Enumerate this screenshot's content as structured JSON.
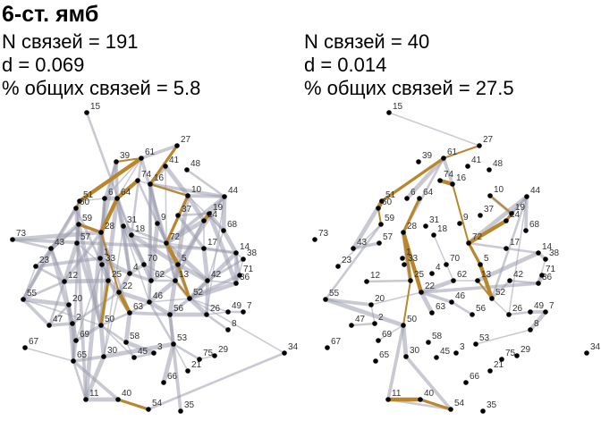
{
  "title": "6-ст. ямб",
  "panels": [
    {
      "id": "left",
      "lines": [
        "N связей = 191",
        "d = 0.069",
        "% общих связей = 5.8"
      ]
    },
    {
      "id": "right",
      "lines": [
        "N связей = 40",
        "d = 0.014",
        "% общих связей = 27.5"
      ]
    }
  ],
  "colors": {
    "edge": "#9a9dae",
    "highlight": "#b8862b",
    "node": "#000000"
  },
  "chart_data": [
    {
      "type": "network",
      "panel": "left",
      "edge_count": 191
    },
    {
      "type": "network",
      "panel": "right",
      "edge_count": 40
    }
  ]
}
